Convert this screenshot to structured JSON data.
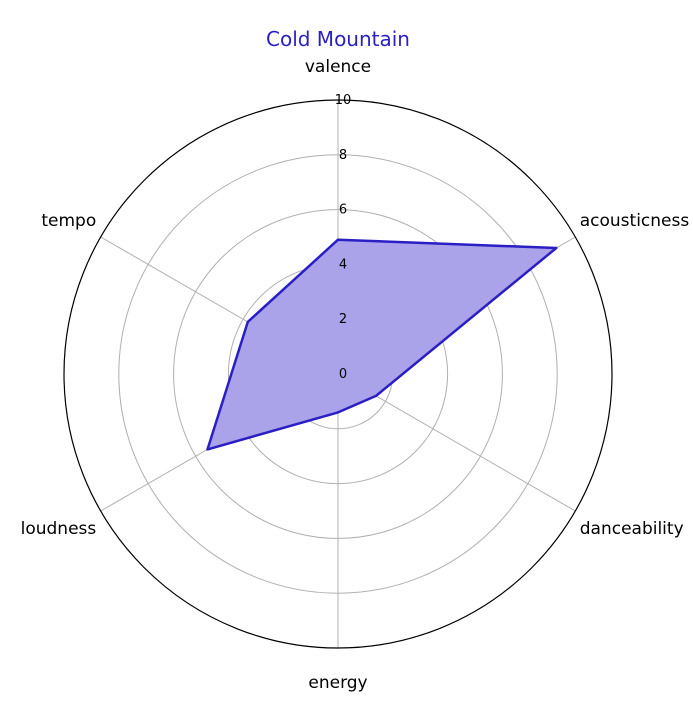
{
  "chart_data": {
    "type": "radar",
    "title": "Cold Mountain",
    "categories": [
      "valence",
      "acousticness",
      "danceability",
      "energy",
      "loudness",
      "tempo"
    ],
    "series": [
      {
        "values": [
          4.9,
          9.2,
          1.6,
          1.4,
          5.5,
          3.8
        ]
      }
    ],
    "rlim": [
      0,
      10
    ],
    "rticks": [
      0,
      2,
      4,
      6,
      8,
      10
    ],
    "rtick_labels": [
      "0",
      "2",
      "4",
      "6",
      "8",
      "10"
    ],
    "grid": true,
    "colors": {
      "title": "#2a1fc4",
      "line": "#2a1fc4",
      "fill": "#aaa3ea",
      "grid": "#b0b0b0",
      "outer_circle": "#000000"
    }
  }
}
